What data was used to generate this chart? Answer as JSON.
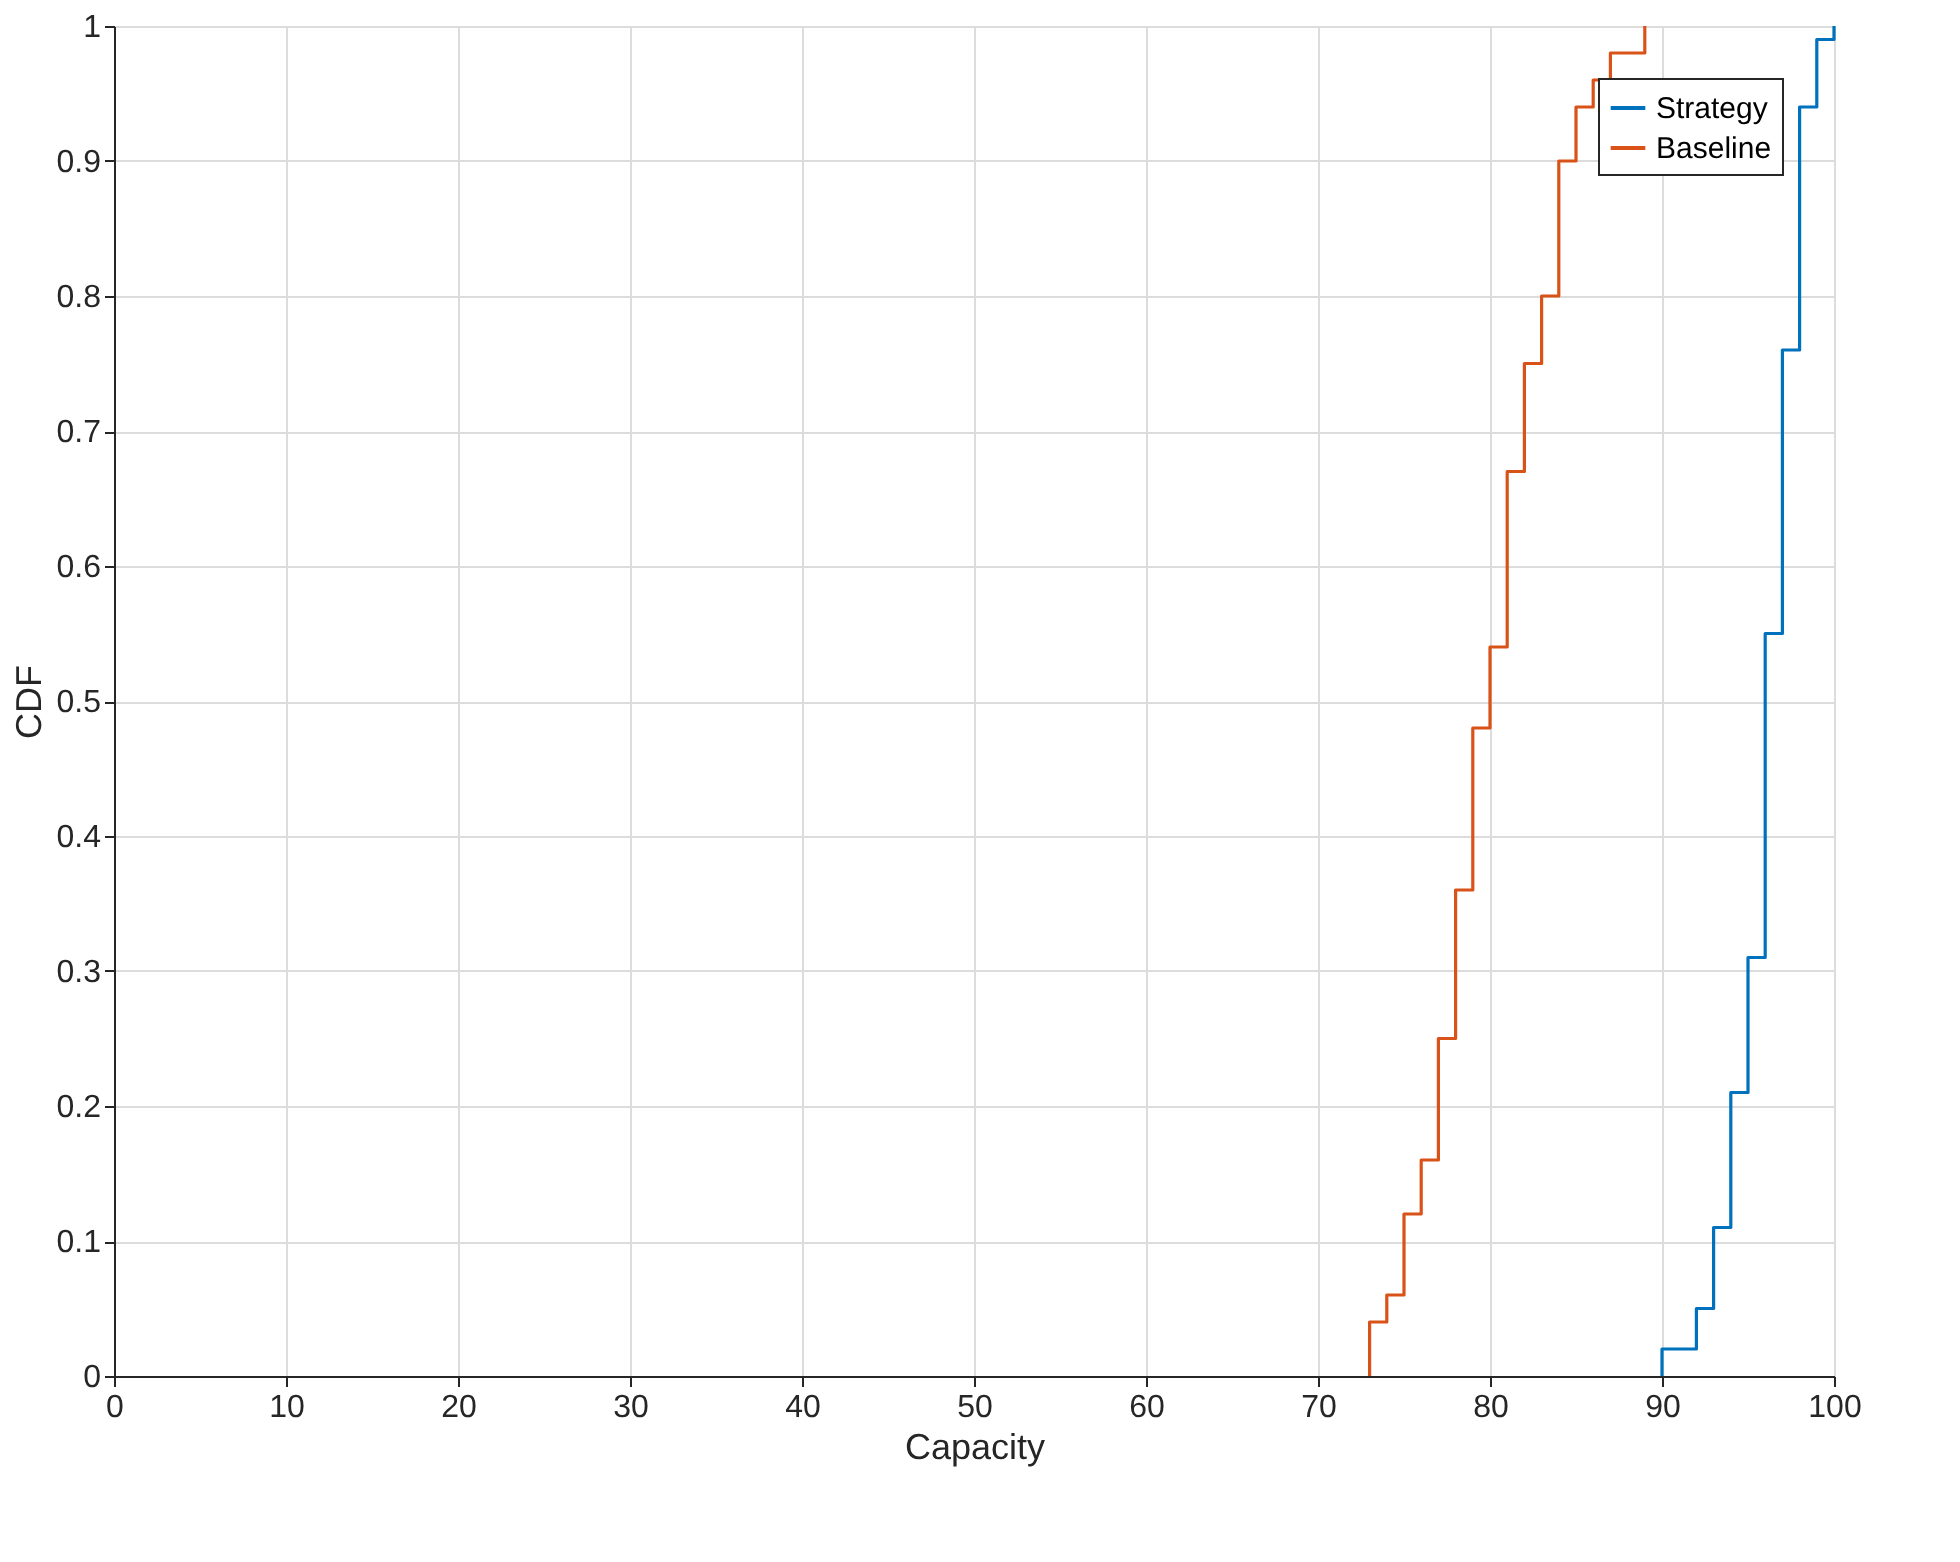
{
  "chart_data": {
    "type": "step",
    "xlabel": "Capacity",
    "ylabel": "CDF",
    "series": [
      {
        "name": "Strategy",
        "color": "#0072bd",
        "x": [
          90,
          90,
          92,
          93,
          94,
          95,
          96,
          97,
          98,
          99,
          100
        ],
        "values": [
          0,
          0.02,
          0.05,
          0.11,
          0.21,
          0.31,
          0.55,
          0.76,
          0.94,
          0.99,
          1
        ]
      },
      {
        "name": "Baseline",
        "color": "#d95319",
        "x": [
          73,
          73,
          74,
          75,
          76,
          77,
          78,
          79,
          80,
          81,
          82,
          83,
          84,
          85,
          86,
          87,
          89
        ],
        "values": [
          0,
          0.04,
          0.06,
          0.12,
          0.16,
          0.25,
          0.36,
          0.48,
          0.54,
          0.67,
          0.75,
          0.8,
          0.9,
          0.94,
          0.96,
          0.98,
          1
        ]
      }
    ],
    "xlim": [
      0,
      100
    ],
    "xticks": [
      0,
      10,
      20,
      30,
      40,
      50,
      60,
      70,
      80,
      90,
      100
    ],
    "ylim": [
      0,
      1
    ],
    "yticks": [
      0,
      0.1,
      0.2,
      0.3,
      0.4,
      0.5,
      0.6,
      0.7,
      0.8,
      0.9,
      1
    ],
    "grid": true,
    "legend": "top right",
    "line_style": "solid",
    "marker": "none"
  }
}
